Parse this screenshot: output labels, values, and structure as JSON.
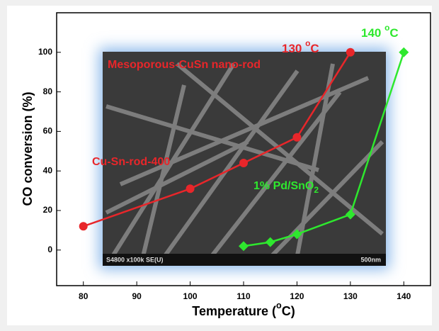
{
  "chart_data": {
    "type": "line",
    "x_label": {
      "text": "Temperature (",
      "sup": "o",
      "tail": "C)"
    },
    "y_label": "CO conversion (%)",
    "xlim": [
      75,
      145
    ],
    "xticks": [
      80,
      90,
      100,
      110,
      120,
      130,
      140
    ],
    "ylim": [
      -18,
      120
    ],
    "yticks": [
      0,
      20,
      40,
      60,
      80,
      100
    ],
    "series": [
      {
        "name": "Cu-Sn-rod-400",
        "color": "#e8262a",
        "marker": "circle",
        "x": [
          80,
          100,
          110,
          120,
          130
        ],
        "values": [
          12,
          31,
          44,
          57,
          100
        ]
      },
      {
        "name": "1% Pd/SnO",
        "name_sub": "2",
        "color": "#2ee82e",
        "marker": "diamond",
        "x": [
          110,
          115,
          120,
          130,
          140
        ],
        "values": [
          2,
          4,
          8,
          18,
          100
        ]
      }
    ],
    "annotations": [
      {
        "text": "130 ",
        "sup": "o",
        "tail": "C",
        "color": "#e8262a"
      },
      {
        "text": "140 ",
        "sup": "o",
        "tail": "C",
        "color": "#2ee82e"
      },
      {
        "text": "Mesoporous-CuSn nano-rod",
        "color": "#e8262a"
      }
    ],
    "image_caption": {
      "left": "S4800 x100k SE(U)",
      "right": "500nm"
    }
  }
}
